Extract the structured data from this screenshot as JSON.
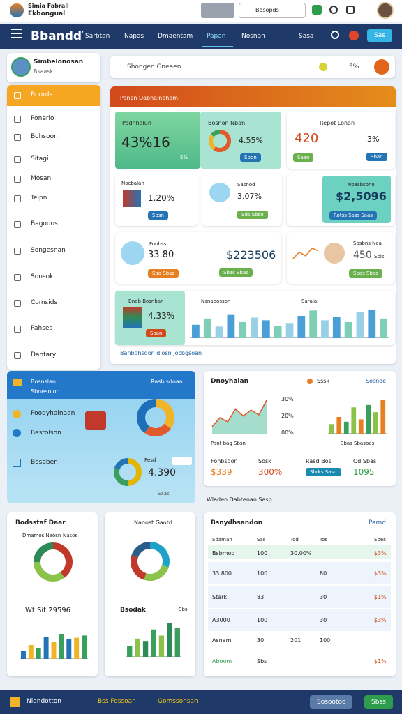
{
  "topbar": {
    "app_name": "Simia Fabrail",
    "app_sub": "Ekbongual",
    "search": "Bosopds"
  },
  "nav": {
    "brand": "Bbandď",
    "items": [
      "Sarbtan",
      "Napas",
      "Dmaentam",
      "Papan",
      "Nosnan"
    ],
    "link": "Sasa",
    "button": "Sas"
  },
  "sidebar": {
    "user": "Simbelonosan",
    "role": "Bsaask",
    "items": [
      "Boords",
      "Ponerlo",
      "Bohsoon",
      "Sitagi",
      "Mosan",
      "Telpn",
      "Bagodos",
      "Songesnan",
      "Sonsok",
      "Comsids",
      "Pahses",
      "Dantary"
    ]
  },
  "search": {
    "placeholder": "Shongen Gneaen",
    "stat": "5%"
  },
  "panel": {
    "title": "Panen Dabhalnoham",
    "card1": {
      "title": "Podnhalun",
      "value": "43%16",
      "note": "5%"
    },
    "card2": {
      "title": "Bosnon Nban",
      "value": "4.55%",
      "button": "Sbdn"
    },
    "card3": {
      "title": "Repot Lonan",
      "value": "420",
      "stat": "3%",
      "button1": "Saan",
      "button2": "Sban"
    },
    "card4": {
      "title": "Nocbalan",
      "value": "1.20%",
      "button": "Sbsn"
    },
    "card5": {
      "title": "Sasnod",
      "value": "3.07%",
      "button": "Sds Sbsn"
    },
    "card6": {
      "title": "Nbasbsono",
      "value": "$2,5096",
      "button": "Rotss Sass Saas"
    },
    "card7": {
      "title": "Fonbss",
      "value": "33.80",
      "button": "Saa Sbas",
      "value2": "$223506",
      "button2": "Sbas Sbas"
    },
    "card9": {
      "title": "Sosbns Naa",
      "value": "450",
      "unit": "Sbis",
      "button": "Sbas Sbas"
    },
    "card10": {
      "title": "Bnob Bosnban",
      "value": "4.33%",
      "button": "Soan",
      "chart_title": "Nsnaposson",
      "chart_link": "Sarala"
    },
    "footer": "Banbohsdon dlosn Jocbgsoan"
  },
  "blue_panel": {
    "title": "Bosnslan",
    "subtitle": "Sbnesnlon",
    "link": "Rasblsdoan",
    "item1": "Poodyhalnaan",
    "item2": "Bastolson",
    "item3": "Bosoben",
    "label": "Pesd",
    "value": "4.390",
    "button": "Saas",
    "footer": "Saas"
  },
  "trend": {
    "title": "Dnoyhalan",
    "legend1": "Sssk",
    "link": "Sosnoe",
    "ticks": [
      "30%",
      "20%",
      "00%"
    ],
    "caption1": "Pant bag Sbsn",
    "caption2": "Sbas Sbasbas",
    "stats": [
      {
        "label": "Fonbsdon",
        "value": "$339"
      },
      {
        "label": "Sosk",
        "value": "300%"
      },
      {
        "label": "Rasd Bos",
        "value": "Sbrks Sasd"
      },
      {
        "label": "Od Sbas",
        "value": "1095"
      }
    ]
  },
  "section_label": "Wladen Dabtenan Sasp",
  "bottom1": {
    "title": "Bodsstaf Daar",
    "legend1": "Dmamos Naosn",
    "legend2": "Nasos",
    "value": "Wt Sit 29596"
  },
  "bottom2": {
    "title": "Nanost Gaotd",
    "label": "Bsodak",
    "note": "Sbs"
  },
  "table": {
    "title": "Bsnydhsandon",
    "link": "Pamd",
    "headers": [
      "Sdaman",
      "Sas",
      "Tod",
      "Tos",
      "Sbes"
    ],
    "rows": [
      [
        "Bsbmoo",
        "100",
        "30.00%",
        null,
        "$3%"
      ],
      [
        "33.800",
        "100",
        null,
        "80",
        "$3%"
      ],
      [
        "Stark",
        "83",
        null,
        "30",
        "$1%"
      ],
      [
        "A3000",
        "100",
        null,
        "30",
        "$3%"
      ],
      [
        "Asnam",
        "30",
        "201",
        "100",
        null
      ],
      [
        "Aboom",
        "Sbs",
        null,
        null,
        "$1%"
      ]
    ]
  },
  "footer": {
    "brand": "Nlandotton",
    "link1": "Bss Fossoan",
    "link2": "Gomssohsan",
    "button1": "Sosootoo",
    "button2": "Sbss"
  },
  "charts": {
    "wide_bars": {
      "values": [
        30,
        44,
        26,
        52,
        36,
        46,
        40,
        28,
        34,
        50,
        62,
        40,
        48,
        36,
        58,
        64,
        44
      ],
      "colors": [
        "#4a9fd6",
        "#7fcfb6",
        "#9ad0e6"
      ]
    },
    "blue_donut": {
      "values": [
        35,
        25,
        40
      ],
      "colors": [
        "#f0b429",
        "#e05a2b",
        "#1c6fb8"
      ]
    },
    "small_donut": {
      "values": [
        50,
        30,
        20
      ],
      "colors": [
        "#e3b505",
        "#3a9e5c",
        "#2474b5"
      ]
    },
    "card2_donut": {
      "values": [
        60,
        25,
        15
      ],
      "colors": [
        "#e05a2b",
        "#f0b429",
        "#3a9e5c"
      ]
    },
    "bottom1_donut": {
      "values": [
        40,
        35,
        25
      ],
      "colors": [
        "#c0392b",
        "#8bc34a",
        "#2e8b57"
      ]
    },
    "bottom2_donut": {
      "values": [
        30,
        25,
        25,
        20
      ],
      "colors": [
        "#1da1c9",
        "#8bc34a",
        "#c0392b",
        "#2b5d8a"
      ]
    },
    "trend_line": {
      "values": [
        10,
        25,
        18,
        40,
        28,
        38,
        30,
        55
      ],
      "color": "#e05a2b"
    },
    "trend_bars": {
      "values": [
        20,
        35,
        25,
        55,
        30,
        60,
        45,
        70
      ],
      "colors": [
        "#8bc34a",
        "#e67e22",
        "#3a9e5c"
      ]
    },
    "bottom1_bars": {
      "values": [
        15,
        25,
        20,
        40,
        30,
        45,
        35,
        38,
        42
      ],
      "colors": [
        "#2474b5",
        "#f0b429",
        "#3a9e5c"
      ]
    },
    "bottom2_bars": {
      "values": [
        18,
        30,
        25,
        45,
        35,
        55,
        48
      ],
      "colors": [
        "#3a9e5c",
        "#8bc34a",
        "#2e8b57"
      ]
    },
    "card9_line": {
      "values": [
        10,
        20,
        14,
        26,
        22
      ],
      "color": "#e67e22"
    }
  }
}
